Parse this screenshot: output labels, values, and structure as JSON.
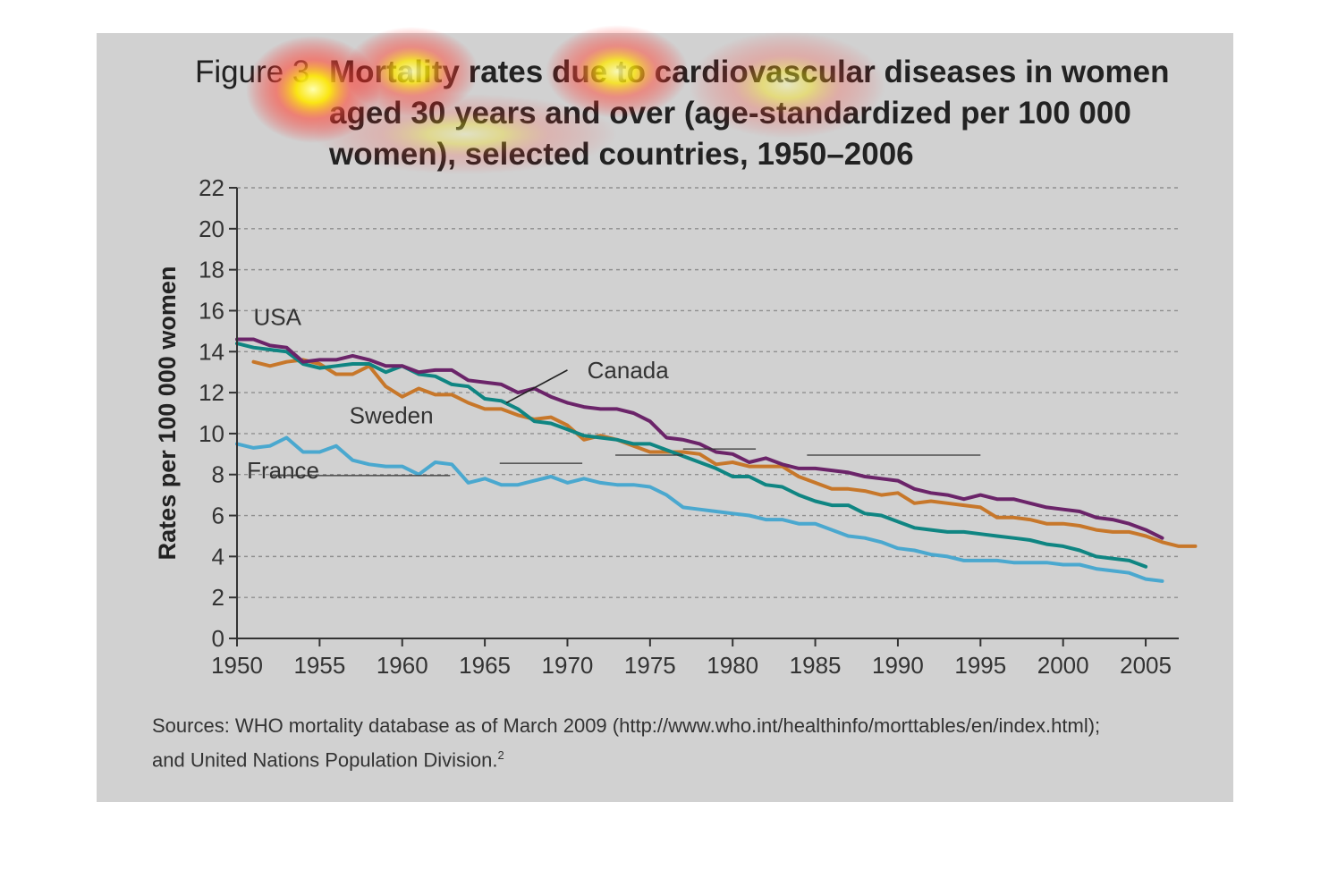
{
  "figure": {
    "label": "Figure 3",
    "title_lines": [
      "Mortality rates due to cardiovascular diseases in women",
      "aged 30 years and over (age-standardized per 100 000",
      "women), selected countries, 1950–2006"
    ],
    "sources_line1": "Sources: WHO mortality database as of March 2009 (http://www.who.int/healthinfo/morttables/en/index.html);",
    "sources_line2": "and United Nations Population Division.",
    "sources_ref": "2"
  },
  "colors": {
    "panel": "#d1d1d1",
    "USA": "#6b2469",
    "Canada": "#0f8582",
    "Sweden": "#c7772a",
    "France": "#4aa8cf",
    "grid": "#8f8f8f",
    "axis": "#333333"
  },
  "chart_data": {
    "type": "line",
    "title": "Mortality rates due to cardiovascular diseases in women aged 30 years and over (age-standardized per 100 000 women), selected countries, 1950–2006",
    "xlabel": "",
    "ylabel": "Rates per 100 000 women",
    "xlim": [
      1950,
      2007
    ],
    "ylim": [
      0,
      22
    ],
    "xticks": [
      1950,
      1955,
      1960,
      1965,
      1970,
      1975,
      1980,
      1985,
      1990,
      1995,
      2000,
      2005
    ],
    "yticks": [
      0,
      2,
      4,
      6,
      8,
      10,
      12,
      14,
      16,
      18,
      20,
      22
    ],
    "grid": "horizontal dashed",
    "legend": "inline labels",
    "series": [
      {
        "name": "USA",
        "start": 1950,
        "values": [
          14.6,
          14.6,
          14.3,
          14.2,
          13.5,
          13.6,
          13.6,
          13.8,
          13.6,
          13.3,
          13.3,
          13.0,
          13.1,
          13.1,
          12.6,
          12.5,
          12.4,
          12.0,
          12.2,
          11.8,
          11.5,
          11.3,
          11.2,
          11.2,
          11.0,
          10.6,
          9.8,
          9.7,
          9.5,
          9.1,
          9.0,
          8.6,
          8.8,
          8.5,
          8.3,
          8.3,
          8.2,
          8.1,
          7.9,
          7.8,
          7.7,
          7.3,
          7.1,
          7.0,
          6.8,
          7.0,
          6.8,
          6.8,
          6.6,
          6.4,
          6.3,
          6.2,
          5.9,
          5.8,
          5.6,
          5.3,
          4.9
        ]
      },
      {
        "name": "Canada",
        "start": 1950,
        "values": [
          14.4,
          14.2,
          14.1,
          14.0,
          13.4,
          13.2,
          13.3,
          13.4,
          13.4,
          13.0,
          13.3,
          12.9,
          12.8,
          12.4,
          12.3,
          11.7,
          11.6,
          11.2,
          10.6,
          10.5,
          10.2,
          9.9,
          9.8,
          9.7,
          9.5,
          9.5,
          9.2,
          8.9,
          8.6,
          8.3,
          7.9,
          7.9,
          7.5,
          7.4,
          7.0,
          6.7,
          6.5,
          6.5,
          6.1,
          6.0,
          5.7,
          5.4,
          5.3,
          5.2,
          5.2,
          5.1,
          5.0,
          4.9,
          4.8,
          4.6,
          4.5,
          4.3,
          4.0,
          3.9,
          3.8,
          3.5
        ]
      },
      {
        "name": "Sweden",
        "start": 1951,
        "values": [
          13.5,
          13.3,
          13.5,
          13.6,
          13.4,
          12.9,
          12.9,
          13.3,
          12.3,
          11.8,
          12.2,
          11.9,
          11.9,
          11.5,
          11.2,
          11.2,
          10.9,
          10.7,
          10.8,
          10.4,
          9.7,
          9.9,
          9.7,
          9.4,
          9.1,
          9.1,
          9.1,
          9.0,
          8.5,
          8.6,
          8.4,
          8.4,
          8.4,
          7.9,
          7.6,
          7.3,
          7.3,
          7.2,
          7.0,
          7.1,
          6.6,
          6.7,
          6.6,
          6.5,
          6.4,
          5.9,
          5.9,
          5.8,
          5.6,
          5.6,
          5.5,
          5.3,
          5.2,
          5.2,
          5.0,
          4.7,
          4.5,
          4.5
        ]
      },
      {
        "name": "France",
        "start": 1950,
        "values": [
          9.5,
          9.3,
          9.4,
          9.8,
          9.1,
          9.1,
          9.4,
          8.7,
          8.5,
          8.4,
          8.4,
          8.0,
          8.6,
          8.5,
          7.6,
          7.8,
          7.5,
          7.5,
          7.7,
          7.9,
          7.6,
          7.8,
          7.6,
          7.5,
          7.5,
          7.4,
          7.0,
          6.4,
          6.3,
          6.2,
          6.1,
          6.0,
          5.8,
          5.8,
          5.6,
          5.6,
          5.3,
          5.0,
          4.9,
          4.7,
          4.4,
          4.3,
          4.1,
          4.0,
          3.8,
          3.8,
          3.8,
          3.7,
          3.7,
          3.7,
          3.6,
          3.6,
          3.4,
          3.3,
          3.2,
          2.9,
          2.8
        ]
      }
    ],
    "labels": {
      "USA": "USA",
      "Canada": "Canada",
      "Sweden": "Sweden",
      "France": "France"
    }
  }
}
